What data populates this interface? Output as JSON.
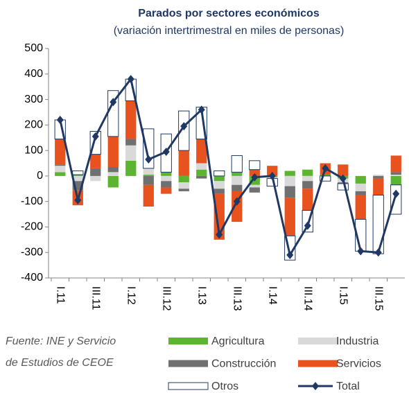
{
  "chart_data": {
    "type": "stacked-bar-line",
    "title": "Parados por sectores económicos",
    "subtitle": "(variación intertrimestral en miles de personas)",
    "source": [
      "Fuente: INE y Servicio",
      "de Estudios de CEOE"
    ],
    "categories": [
      "I.11",
      null,
      "III.11",
      null,
      "I.12",
      null,
      "III.12",
      null,
      "I.13",
      null,
      "III.13",
      null,
      "I.14",
      null,
      "III.14",
      null,
      "I.15",
      null,
      "III.15",
      null
    ],
    "series": [
      {
        "name": "Agricultura",
        "color": "#5cb531",
        "values": [
          15,
          5,
          0,
          -45,
          60,
          5,
          15,
          -25,
          25,
          -20,
          15,
          -35,
          -5,
          20,
          25,
          5,
          -10,
          -30,
          0,
          -35
        ]
      },
      {
        "name": "Industria",
        "color": "#d9d9d9",
        "values": [
          25,
          -20,
          -20,
          15,
          60,
          25,
          -20,
          -25,
          25,
          -30,
          -35,
          -10,
          -5,
          -40,
          -20,
          0,
          -15,
          -30,
          5,
          5
        ]
      },
      {
        "name": "Construcción",
        "color": "#707070",
        "values": [
          5,
          -35,
          30,
          20,
          25,
          -35,
          -25,
          -10,
          -10,
          -20,
          -25,
          -20,
          0,
          -45,
          -30,
          0,
          -5,
          -15,
          -10,
          10
        ]
      },
      {
        "name": "Servicios",
        "color": "#e8521e",
        "values": [
          100,
          -60,
          55,
          120,
          150,
          -85,
          -25,
          100,
          95,
          -180,
          -120,
          25,
          40,
          -150,
          -85,
          45,
          45,
          -95,
          -65,
          65
        ]
      },
      {
        "name": "Otros",
        "color": "#ffffff",
        "stroke": "#1f3864",
        "values": [
          75,
          15,
          90,
          180,
          85,
          155,
          150,
          155,
          125,
          20,
          65,
          35,
          -30,
          -95,
          -85,
          -20,
          -25,
          -125,
          -230,
          -115
        ]
      },
      {
        "name": "Total",
        "color": "#1f3864",
        "kind": "line",
        "values": [
          220,
          -95,
          155,
          290,
          380,
          65,
          95,
          195,
          260,
          -230,
          -100,
          -5,
          0,
          -310,
          -195,
          30,
          -10,
          -295,
          -300,
          -70
        ]
      }
    ],
    "ylim": [
      -400,
      500
    ],
    "yticks": [
      -400,
      -300,
      -200,
      -100,
      0,
      100,
      200,
      300,
      400,
      500
    ]
  }
}
